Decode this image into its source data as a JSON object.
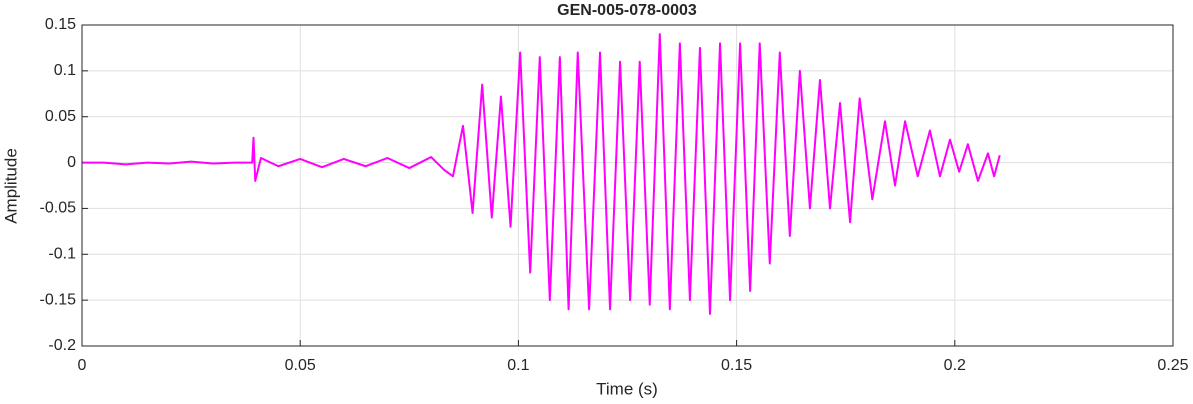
{
  "chart_data": {
    "type": "line",
    "title": "GEN-005-078-0003",
    "xlabel": "Time (s)",
    "ylabel": "Amplitude",
    "xlim": [
      0,
      0.25
    ],
    "ylim": [
      -0.2,
      0.15
    ],
    "xticks": [
      0,
      0.05,
      0.1,
      0.15,
      0.2,
      0.25
    ],
    "yticks": [
      -0.2,
      -0.15,
      -0.1,
      -0.05,
      0,
      0.05,
      0.1,
      0.15
    ],
    "grid": true,
    "series": [
      {
        "color": "#ff00ff",
        "x": [
          0,
          0.005,
          0.01,
          0.015,
          0.02,
          0.025,
          0.03,
          0.035,
          0.039,
          0.0393,
          0.0397,
          0.041,
          0.045,
          0.05,
          0.055,
          0.06,
          0.065,
          0.07,
          0.075,
          0.08,
          0.083,
          0.085,
          0.0873,
          0.0895,
          0.0917,
          0.0939,
          0.096,
          0.0982,
          0.1004,
          0.1027,
          0.1049,
          0.1072,
          0.1095,
          0.1115,
          0.1136,
          0.1162,
          0.1187,
          0.121,
          0.1233,
          0.1256,
          0.1278,
          0.1301,
          0.1324,
          0.1347,
          0.137,
          0.1393,
          0.1416,
          0.1439,
          0.1462,
          0.1485,
          0.1508,
          0.1531,
          0.1553,
          0.1576,
          0.1599,
          0.1622,
          0.1645,
          0.1668,
          0.1691,
          0.1714,
          0.1737,
          0.176,
          0.1782,
          0.1811,
          0.184,
          0.1863,
          0.1886,
          0.1915,
          0.1943,
          0.1966,
          0.1989,
          0.201,
          0.203,
          0.2053,
          0.2076,
          0.209,
          0.2103
        ],
        "values": [
          0,
          0,
          -0.002,
          0,
          -0.001,
          0.001,
          -0.001,
          0,
          0,
          0.027,
          -0.02,
          0.005,
          -0.004,
          0.004,
          -0.005,
          0.004,
          -0.004,
          0.005,
          -0.006,
          0.006,
          -0.008,
          -0.015,
          0.04,
          -0.055,
          0.085,
          -0.06,
          0.072,
          -0.07,
          0.12,
          -0.12,
          0.115,
          -0.15,
          0.115,
          -0.16,
          0.12,
          -0.16,
          0.12,
          -0.16,
          0.11,
          -0.15,
          0.11,
          -0.155,
          0.14,
          -0.16,
          0.13,
          -0.15,
          0.125,
          -0.165,
          0.13,
          -0.15,
          0.13,
          -0.14,
          0.13,
          -0.11,
          0.12,
          -0.08,
          0.1,
          -0.05,
          0.09,
          -0.05,
          0.065,
          -0.065,
          0.07,
          -0.04,
          0.045,
          -0.025,
          0.045,
          -0.015,
          0.035,
          -0.015,
          0.025,
          -0.01,
          0.02,
          -0.02,
          0.01,
          -0.015,
          0.008
        ]
      }
    ]
  }
}
